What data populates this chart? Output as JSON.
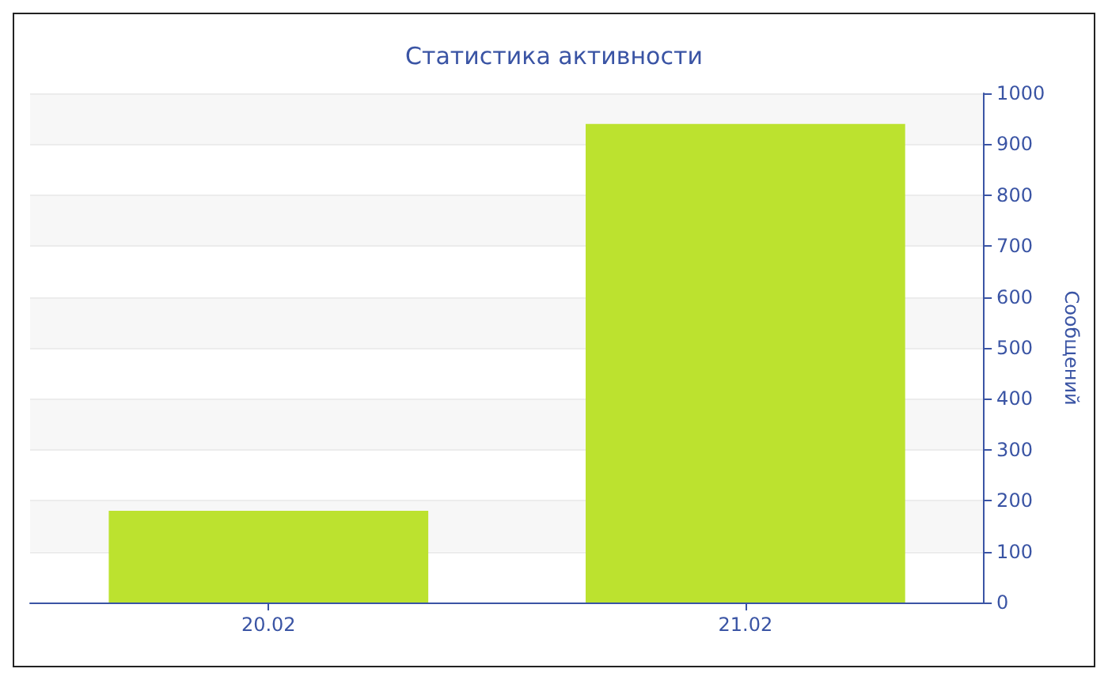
{
  "chart_data": {
    "type": "bar",
    "title": "Статистика активности",
    "ylabel": "Сообщений",
    "categories": [
      "20.02",
      "21.02"
    ],
    "values": [
      180,
      940
    ],
    "color": "#bce22f",
    "ylim": [
      0,
      1000
    ],
    "yticks": [
      0,
      100,
      200,
      300,
      400,
      500,
      600,
      700,
      800,
      900,
      1000
    ],
    "grid": true
  }
}
